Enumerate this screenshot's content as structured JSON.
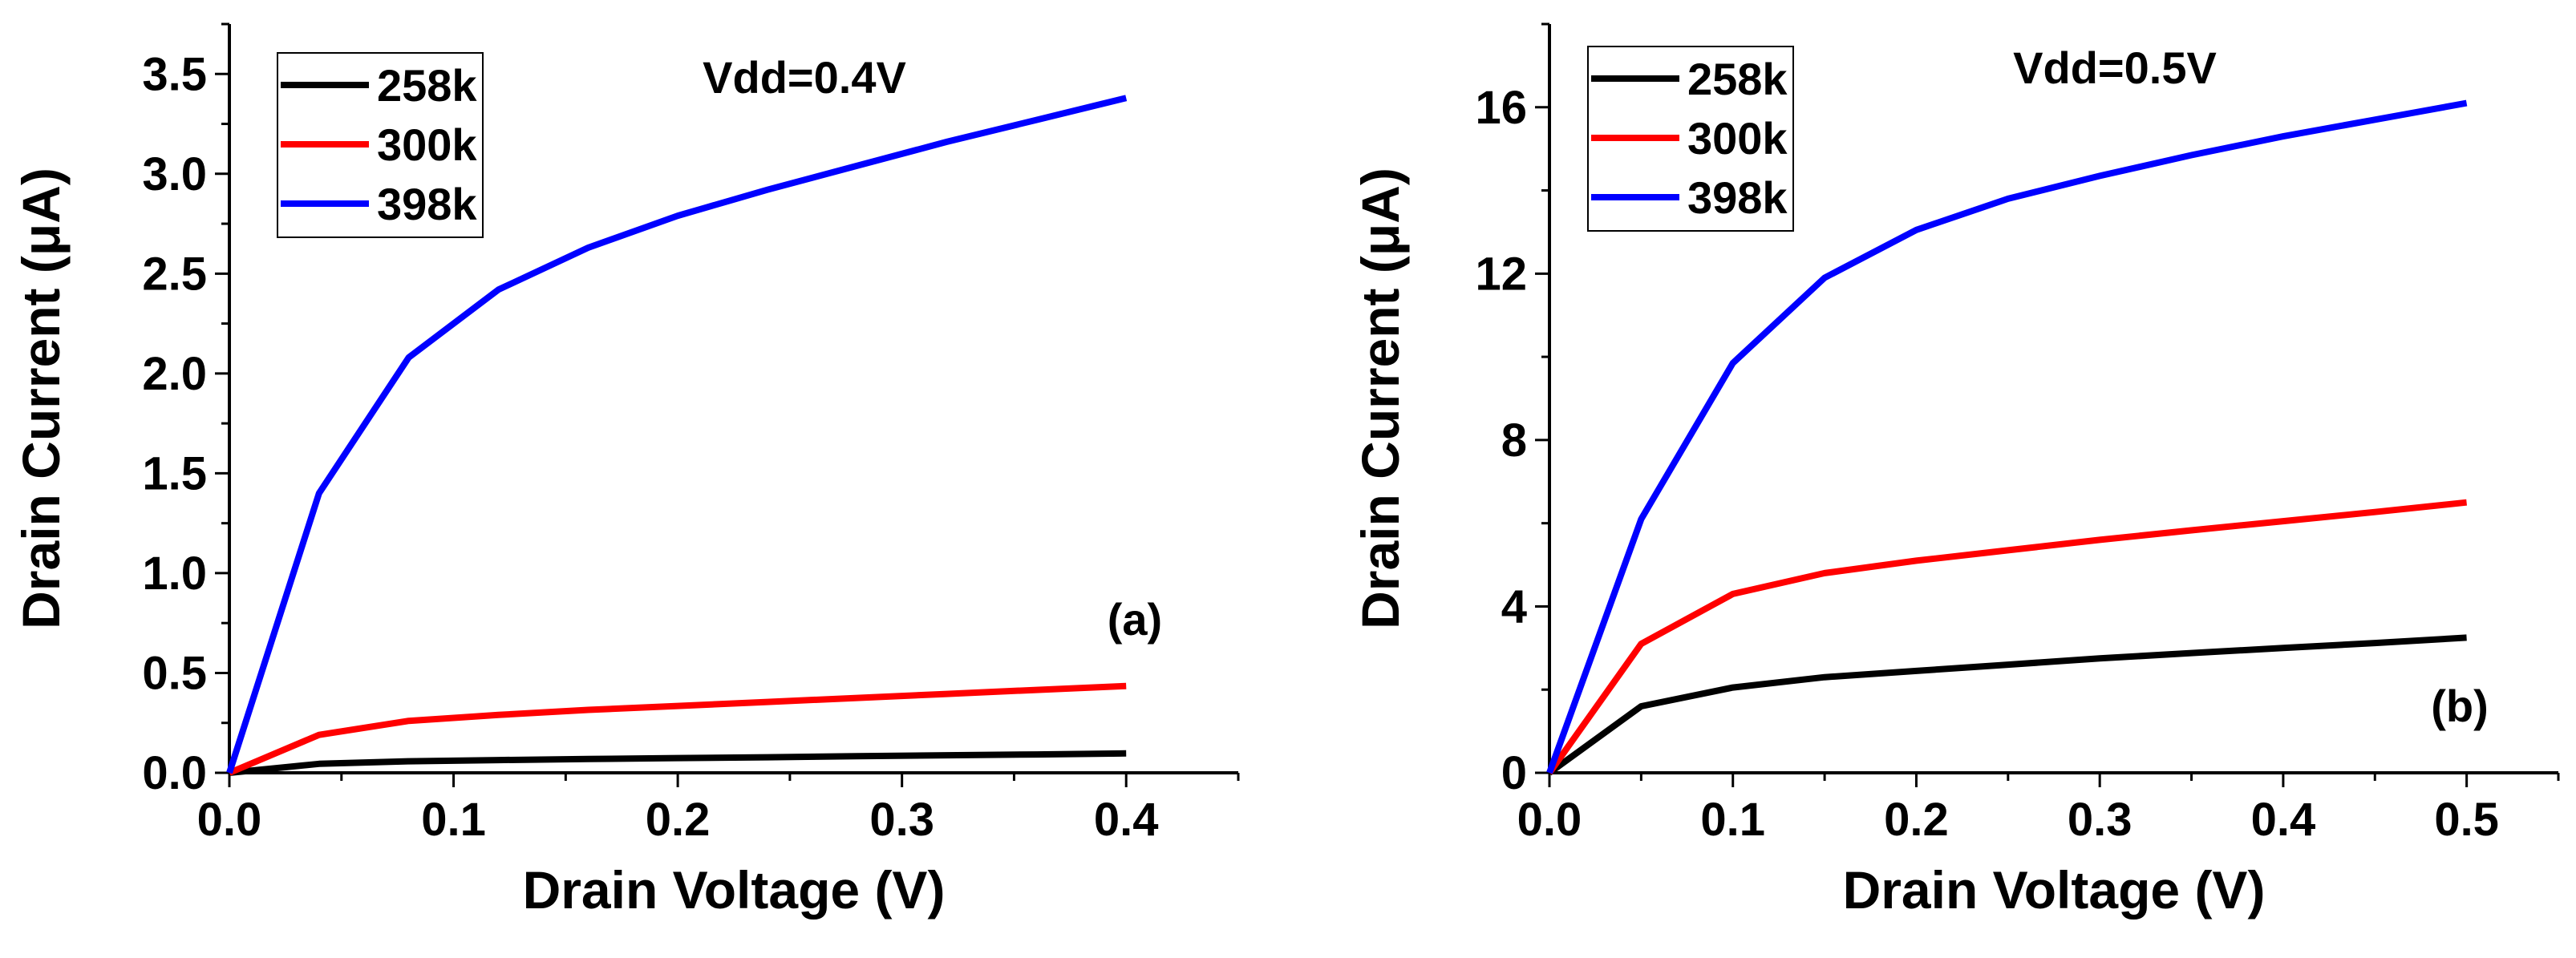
{
  "chart_data": [
    {
      "type": "line",
      "panel_label": "(a)",
      "annotation": "Vdd=0.4V",
      "xlabel": "Drain Voltage (V)",
      "ylabel": "Drain Current (μA)",
      "xlim": [
        0,
        0.45
      ],
      "ylim": [
        0,
        3.75
      ],
      "x_ticks": [
        0.0,
        0.1,
        0.2,
        0.3,
        0.4
      ],
      "x_tick_labels": [
        "0.0",
        "0.1",
        "0.2",
        "0.3",
        "0.4"
      ],
      "y_ticks": [
        0.0,
        0.5,
        1.0,
        1.5,
        2.0,
        2.5,
        3.0,
        3.5
      ],
      "y_tick_labels": [
        "0.0",
        "0.5",
        "1.0",
        "1.5",
        "2.0",
        "2.5",
        "3.0",
        "3.5"
      ],
      "legend_position": "top-left",
      "grid": false,
      "series": [
        {
          "name": "258k",
          "color": "#000000",
          "x": [
            0,
            0.04,
            0.08,
            0.12,
            0.16,
            0.2,
            0.24,
            0.28,
            0.32,
            0.36,
            0.4
          ],
          "values": [
            0,
            0.045,
            0.058,
            0.064,
            0.069,
            0.074,
            0.078,
            0.083,
            0.088,
            0.092,
            0.097
          ]
        },
        {
          "name": "300k",
          "color": "#ff0000",
          "x": [
            0,
            0.04,
            0.08,
            0.12,
            0.16,
            0.2,
            0.24,
            0.28,
            0.32,
            0.36,
            0.4
          ],
          "values": [
            0,
            0.19,
            0.26,
            0.29,
            0.315,
            0.335,
            0.355,
            0.375,
            0.395,
            0.415,
            0.435
          ]
        },
        {
          "name": "398k",
          "color": "#0000ff",
          "x": [
            0,
            0.04,
            0.08,
            0.12,
            0.16,
            0.2,
            0.24,
            0.28,
            0.32,
            0.36,
            0.4
          ],
          "values": [
            0,
            1.4,
            2.08,
            2.42,
            2.63,
            2.79,
            2.92,
            3.04,
            3.16,
            3.27,
            3.38
          ]
        }
      ]
    },
    {
      "type": "line",
      "panel_label": "(b)",
      "annotation": "Vdd=0.5V",
      "xlabel": "Drain Voltage (V)",
      "ylabel": "Drain Current (μA)",
      "xlim": [
        0,
        0.55
      ],
      "ylim": [
        0,
        18
      ],
      "x_ticks": [
        0.0,
        0.1,
        0.2,
        0.3,
        0.4,
        0.5
      ],
      "x_tick_labels": [
        "0.0",
        "0.1",
        "0.2",
        "0.3",
        "0.4",
        "0.5"
      ],
      "y_ticks": [
        0,
        4,
        8,
        12,
        16
      ],
      "y_tick_labels": [
        "0",
        "4",
        "8",
        "12",
        "16"
      ],
      "legend_position": "top-left",
      "grid": false,
      "series": [
        {
          "name": "258k",
          "color": "#000000",
          "x": [
            0,
            0.05,
            0.1,
            0.15,
            0.2,
            0.25,
            0.3,
            0.35,
            0.4,
            0.45,
            0.5
          ],
          "values": [
            0,
            1.6,
            2.05,
            2.3,
            2.45,
            2.6,
            2.75,
            2.88,
            3.0,
            3.12,
            3.25
          ]
        },
        {
          "name": "300k",
          "color": "#ff0000",
          "x": [
            0,
            0.05,
            0.1,
            0.15,
            0.2,
            0.25,
            0.3,
            0.35,
            0.4,
            0.45,
            0.5
          ],
          "values": [
            0,
            3.1,
            4.3,
            4.8,
            5.1,
            5.35,
            5.6,
            5.83,
            6.05,
            6.27,
            6.5
          ]
        },
        {
          "name": "398k",
          "color": "#0000ff",
          "x": [
            0,
            0.05,
            0.1,
            0.15,
            0.2,
            0.25,
            0.3,
            0.35,
            0.4,
            0.45,
            0.5
          ],
          "values": [
            0,
            6.1,
            9.85,
            11.9,
            13.05,
            13.8,
            14.35,
            14.85,
            15.3,
            15.7,
            16.1
          ]
        }
      ]
    }
  ]
}
